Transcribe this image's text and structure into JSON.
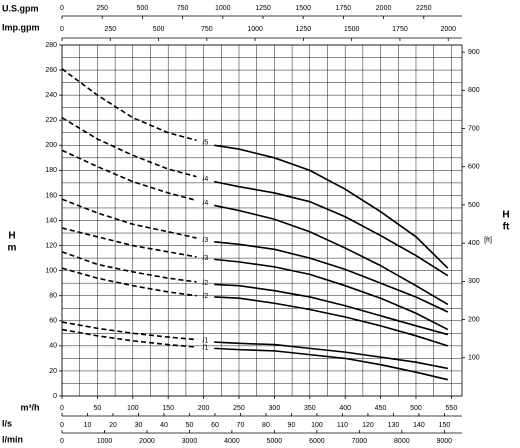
{
  "chart_data": {
    "type": "line",
    "x_label": "m³/h",
    "y_label": [
      "H",
      "m"
    ],
    "y2_label": [
      "H",
      "ft"
    ],
    "y2_unit": "[ft]",
    "xlim": [
      0,
      565
    ],
    "xticks": [
      0,
      50,
      100,
      150,
      200,
      250,
      300,
      350,
      400,
      450,
      500,
      550
    ],
    "xgrid": [
      0,
      25,
      50,
      75,
      100,
      125,
      150,
      175,
      200,
      225,
      250,
      275,
      300,
      325,
      350,
      375,
      400,
      425,
      450,
      475,
      500,
      525,
      550
    ],
    "ylim": [
      0,
      280
    ],
    "yticks": [
      0,
      20,
      40,
      60,
      80,
      100,
      120,
      140,
      160,
      180,
      200,
      220,
      240,
      260,
      280
    ],
    "ygrid": [
      0,
      10,
      20,
      30,
      40,
      50,
      60,
      70,
      80,
      90,
      100,
      110,
      120,
      130,
      140,
      150,
      160,
      170,
      180,
      190,
      200,
      210,
      220,
      230,
      240,
      250,
      260,
      270,
      280
    ],
    "y2lim": [
      0,
      918.6
    ],
    "y2ticks": [
      100,
      200,
      300,
      400,
      500,
      600,
      700,
      800,
      900
    ],
    "grid": true,
    "color": "#000000",
    "secondary_x_axes": [
      {
        "side": "top",
        "title": "U.S.gpm",
        "xlim": [
          0,
          2487.7
        ],
        "ticks": [
          0,
          250,
          500,
          750,
          1000,
          1250,
          1500,
          1750,
          2000,
          2250
        ]
      },
      {
        "side": "top",
        "title": "Imp.gpm",
        "xlim": [
          0,
          2071.3
        ],
        "ticks": [
          0,
          250,
          500,
          750,
          1000,
          1250,
          1500,
          1750,
          2000
        ]
      },
      {
        "side": "bottom",
        "title": "l/s",
        "xlim": [
          0,
          156.9
        ],
        "ticks": [
          0,
          10,
          20,
          30,
          40,
          50,
          60,
          70,
          80,
          90,
          100,
          110,
          120,
          130,
          140,
          150
        ]
      },
      {
        "side": "bottom",
        "title": "l/min",
        "xlim": [
          0,
          9416.7
        ],
        "ticks": [
          0,
          1000,
          2000,
          3000,
          4000,
          5000,
          6000,
          7000,
          8000,
          9000
        ]
      }
    ],
    "series": [
      {
        "name": "/5",
        "segments": [
          {
            "style": "dashed",
            "x": [
              0,
              50,
              100,
              150,
              190
            ],
            "values": [
              261,
              240,
              222,
              210,
              204
            ]
          },
          {
            "style": "solid",
            "x": [
              215,
              250,
              300,
              350,
              400,
              450,
              500,
              545
            ],
            "values": [
              200,
              197,
              190,
              180,
              165,
              147,
              127,
              102
            ]
          }
        ]
      },
      {
        "name": "/4",
        "segments": [
          {
            "style": "dashed",
            "x": [
              0,
              50,
              100,
              150,
              190
            ],
            "values": [
              222,
              205,
              192,
              181,
              175
            ]
          },
          {
            "style": "solid",
            "x": [
              215,
              250,
              300,
              350,
              400,
              450,
              500,
              545
            ],
            "values": [
              171,
              167,
              162,
              155,
              143,
              128,
              112,
              96
            ]
          }
        ]
      },
      {
        "name": "/4",
        "segments": [
          {
            "style": "dashed",
            "x": [
              0,
              50,
              100,
              150,
              190
            ],
            "values": [
              196,
              183,
              171,
              162,
              156
            ]
          },
          {
            "style": "solid",
            "x": [
              215,
              250,
              300,
              350,
              400,
              450,
              500,
              545
            ],
            "values": [
              152,
              148,
              141,
              131,
              118,
              104,
              88,
              73
            ]
          }
        ]
      },
      {
        "name": "/3",
        "segments": [
          {
            "style": "dashed",
            "x": [
              0,
              50,
              100,
              150,
              190
            ],
            "values": [
              157,
              146,
              137,
              131,
              126
            ]
          },
          {
            "style": "solid",
            "x": [
              215,
              250,
              300,
              350,
              400,
              450,
              500,
              545
            ],
            "values": [
              123,
              121,
              117,
              110,
              101,
              90,
              79,
              67
            ]
          }
        ]
      },
      {
        "name": "/3",
        "segments": [
          {
            "style": "dashed",
            "x": [
              0,
              50,
              100,
              150,
              190
            ],
            "values": [
              134,
              127,
              120,
              115,
              111
            ]
          },
          {
            "style": "solid",
            "x": [
              215,
              250,
              300,
              350,
              400,
              450,
              500,
              545
            ],
            "values": [
              109,
              107,
              103,
              97,
              88,
              78,
              66,
              53
            ]
          }
        ]
      },
      {
        "name": "/2",
        "segments": [
          {
            "style": "dashed",
            "x": [
              0,
              50,
              100,
              150,
              190
            ],
            "values": [
              115,
              105,
              99,
              94,
              91
            ]
          },
          {
            "style": "solid",
            "x": [
              215,
              250,
              300,
              350,
              400,
              450,
              500,
              545
            ],
            "values": [
              89,
              88,
              84,
              79,
              72,
              64,
              56,
              49
            ]
          }
        ]
      },
      {
        "name": "/2",
        "segments": [
          {
            "style": "dashed",
            "x": [
              0,
              50,
              100,
              150,
              190
            ],
            "values": [
              102,
              94,
              88,
              83,
              80
            ]
          },
          {
            "style": "solid",
            "x": [
              215,
              250,
              300,
              350,
              400,
              450,
              500,
              545
            ],
            "values": [
              79,
              78,
              74,
              69,
              63,
              56,
              48,
              40
            ]
          }
        ]
      },
      {
        "name": "/1",
        "segments": [
          {
            "style": "dashed",
            "x": [
              0,
              50,
              100,
              150,
              190
            ],
            "values": [
              59,
              54,
              50,
              47,
              45
            ]
          },
          {
            "style": "solid",
            "x": [
              215,
              250,
              300,
              350,
              400,
              450,
              500,
              545
            ],
            "values": [
              43,
              42,
              41,
              38,
              35,
              31,
              27,
              22
            ]
          }
        ]
      },
      {
        "name": "/1",
        "segments": [
          {
            "style": "dashed",
            "x": [
              0,
              50,
              100,
              150,
              190
            ],
            "values": [
              53,
              48,
              44,
              41,
              39
            ]
          },
          {
            "style": "solid",
            "x": [
              215,
              250,
              300,
              350,
              400,
              450,
              500,
              545
            ],
            "values": [
              38,
              37,
              36,
              33,
              30,
              25,
              19,
              13
            ]
          }
        ]
      }
    ]
  }
}
